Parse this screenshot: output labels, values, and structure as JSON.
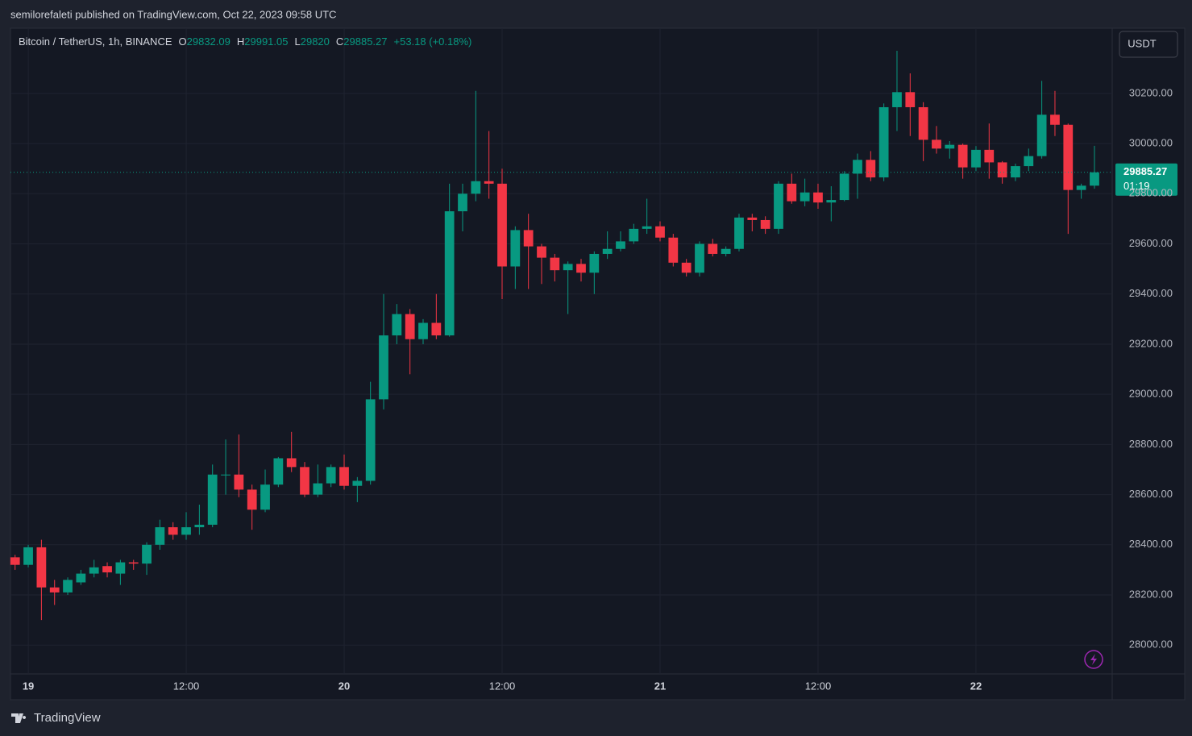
{
  "chart_data": {
    "type": "candlestick",
    "published": "semilorefaleti published on TradingView.com, Oct 22, 2023 09:58 UTC",
    "title": "Bitcoin / TetherUS, 1h, BINANCE",
    "ohlc_labels": [
      "O",
      "H",
      "L",
      "C"
    ],
    "change": "+53.18 (+0.18%)",
    "currency": "USDT",
    "countdown": "01:19",
    "brand": "TradingView",
    "up_color": "#089981",
    "down_color": "#f23645",
    "grid": true,
    "x": [
      "2023-10-18 23:00",
      "2023-10-19 00:00",
      "2023-10-19 01:00",
      "2023-10-19 02:00",
      "2023-10-19 03:00",
      "2023-10-19 04:00",
      "2023-10-19 05:00",
      "2023-10-19 06:00",
      "2023-10-19 07:00",
      "2023-10-19 08:00",
      "2023-10-19 09:00",
      "2023-10-19 10:00",
      "2023-10-19 11:00",
      "2023-10-19 12:00",
      "2023-10-19 13:00",
      "2023-10-19 14:00",
      "2023-10-19 15:00",
      "2023-10-19 16:00",
      "2023-10-19 17:00",
      "2023-10-19 18:00",
      "2023-10-19 19:00",
      "2023-10-19 20:00",
      "2023-10-19 21:00",
      "2023-10-19 22:00",
      "2023-10-19 23:00",
      "2023-10-20 00:00",
      "2023-10-20 01:00",
      "2023-10-20 02:00",
      "2023-10-20 03:00",
      "2023-10-20 04:00",
      "2023-10-20 05:00",
      "2023-10-20 06:00",
      "2023-10-20 07:00",
      "2023-10-20 08:00",
      "2023-10-20 09:00",
      "2023-10-20 10:00",
      "2023-10-20 11:00",
      "2023-10-20 12:00",
      "2023-10-20 13:00",
      "2023-10-20 14:00",
      "2023-10-20 15:00",
      "2023-10-20 16:00",
      "2023-10-20 17:00",
      "2023-10-20 18:00",
      "2023-10-20 19:00",
      "2023-10-20 20:00",
      "2023-10-20 21:00",
      "2023-10-20 22:00",
      "2023-10-20 23:00",
      "2023-10-21 00:00",
      "2023-10-21 01:00",
      "2023-10-21 02:00",
      "2023-10-21 03:00",
      "2023-10-21 04:00",
      "2023-10-21 05:00",
      "2023-10-21 06:00",
      "2023-10-21 07:00",
      "2023-10-21 08:00",
      "2023-10-21 09:00",
      "2023-10-21 10:00",
      "2023-10-21 11:00",
      "2023-10-21 12:00",
      "2023-10-21 13:00",
      "2023-10-21 14:00",
      "2023-10-21 15:00",
      "2023-10-21 16:00",
      "2023-10-21 17:00",
      "2023-10-21 18:00",
      "2023-10-21 19:00",
      "2023-10-21 20:00",
      "2023-10-21 21:00",
      "2023-10-21 22:00",
      "2023-10-21 23:00",
      "2023-10-22 00:00",
      "2023-10-22 01:00",
      "2023-10-22 02:00",
      "2023-10-22 03:00",
      "2023-10-22 04:00",
      "2023-10-22 05:00",
      "2023-10-22 06:00",
      "2023-10-22 07:00",
      "2023-10-22 08:00",
      "2023-10-22 09:00"
    ],
    "open": [
      28350,
      28320,
      28390,
      28230,
      28210,
      28250,
      28285,
      28315,
      28285,
      28330,
      28325,
      28400,
      28470,
      28440,
      28470,
      28480,
      28680,
      28680,
      28620,
      28540,
      28640,
      28745,
      28710,
      28600,
      28645,
      28710,
      28635,
      28655,
      28980,
      29235,
      29320,
      29220,
      29285,
      29235,
      29730,
      29800,
      29850,
      29840,
      29510,
      29655,
      29590,
      29545,
      29495,
      29520,
      29485,
      29560,
      29580,
      29610,
      29660,
      29670,
      29625,
      29525,
      29485,
      29600,
      29560,
      29580,
      29705,
      29695,
      29660,
      29840,
      29770,
      29805,
      29765,
      29775,
      29880,
      29935,
      29865,
      30145,
      30205,
      30145,
      30015,
      29980,
      29995,
      29905,
      29975,
      29925,
      29865,
      29910,
      29950,
      30115,
      30075,
      29815,
      29832.09
    ],
    "high": [
      28360,
      28400,
      28420,
      28260,
      28270,
      28300,
      28340,
      28330,
      28340,
      28340,
      28410,
      28500,
      28490,
      28530,
      28560,
      28720,
      28820,
      28840,
      28640,
      28700,
      28750,
      28850,
      28730,
      28720,
      28720,
      28760,
      28670,
      29050,
      29400,
      29360,
      29340,
      29300,
      29400,
      29840,
      29840,
      30210,
      30050,
      29900,
      29670,
      29720,
      29600,
      29560,
      29530,
      29540,
      29570,
      29650,
      29650,
      29680,
      29780,
      29690,
      29640,
      29540,
      29610,
      29620,
      29590,
      29720,
      29720,
      29710,
      29850,
      29880,
      29860,
      29840,
      29830,
      29890,
      29960,
      29970,
      30160,
      30370,
      30280,
      30165,
      30070,
      30010,
      30000,
      29990,
      30080,
      29930,
      29920,
      29980,
      30250,
      30210,
      30080,
      29840,
      29991.05
    ],
    "low": [
      28300,
      28310,
      28100,
      28160,
      28200,
      28240,
      28270,
      28270,
      28240,
      28300,
      28280,
      28380,
      28420,
      28420,
      28440,
      28470,
      28600,
      28590,
      28460,
      28530,
      28630,
      28690,
      28590,
      28590,
      28630,
      28620,
      28570,
      28640,
      28940,
      29200,
      29080,
      29200,
      29220,
      29230,
      29650,
      29770,
      29780,
      29380,
      29420,
      29420,
      29440,
      29450,
      29320,
      29450,
      29400,
      29540,
      29570,
      29600,
      29640,
      29610,
      29510,
      29470,
      29470,
      29550,
      29550,
      29570,
      29650,
      29640,
      29640,
      29760,
      29750,
      29740,
      29690,
      29770,
      29780,
      29850,
      29850,
      30050,
      30030,
      29930,
      29960,
      29940,
      29860,
      29890,
      29860,
      29840,
      29850,
      29890,
      29940,
      30030,
      29640,
      29780,
      29820.0
    ],
    "close": [
      28320,
      28390,
      28230,
      28210,
      28260,
      28285,
      28310,
      28290,
      28330,
      28325,
      28400,
      28470,
      28440,
      28470,
      28480,
      28680,
      28680,
      28620,
      28540,
      28640,
      28745,
      28710,
      28600,
      28645,
      28710,
      28635,
      28655,
      28980,
      29235,
      29320,
      29220,
      29285,
      29235,
      29730,
      29800,
      29850,
      29840,
      29510,
      29655,
      29590,
      29545,
      29495,
      29520,
      29485,
      29560,
      29580,
      29610,
      29660,
      29670,
      29625,
      29525,
      29485,
      29600,
      29560,
      29580,
      29705,
      29695,
      29660,
      29840,
      29770,
      29805,
      29765,
      29775,
      29880,
      29935,
      29865,
      30145,
      30205,
      30145,
      30015,
      29980,
      29995,
      29905,
      29975,
      29925,
      29865,
      29910,
      29950,
      30115,
      30075,
      29815,
      29832.09,
      29885.27
    ],
    "xlim": [
      "2023-10-18 22:39",
      "2023-10-22 10:21"
    ],
    "xticks": [
      {
        "value": "2023-10-19 00:00",
        "label": "19"
      },
      {
        "value": "2023-10-19 12:00",
        "label": "12:00"
      },
      {
        "value": "2023-10-20 00:00",
        "label": "20"
      },
      {
        "value": "2023-10-20 12:00",
        "label": "12:00"
      },
      {
        "value": "2023-10-21 00:00",
        "label": "21"
      },
      {
        "value": "2023-10-21 12:00",
        "label": "12:00"
      },
      {
        "value": "2023-10-22 00:00",
        "label": "22"
      }
    ],
    "ylim": [
      27885,
      30460
    ],
    "yticks": [
      {
        "value": 28000,
        "label": "28000.00"
      },
      {
        "value": 28200,
        "label": "28200.00"
      },
      {
        "value": 28400,
        "label": "28400.00"
      },
      {
        "value": 28600,
        "label": "28600.00"
      },
      {
        "value": 28800,
        "label": "28800.00"
      },
      {
        "value": 29000,
        "label": "29000.00"
      },
      {
        "value": 29200,
        "label": "29200.00"
      },
      {
        "value": 29400,
        "label": "29400.00"
      },
      {
        "value": 29600,
        "label": "29600.00"
      },
      {
        "value": 29800,
        "label": "29800.00"
      },
      {
        "value": 30000,
        "label": "30000.00"
      },
      {
        "value": 30200,
        "label": "30200.00"
      }
    ]
  }
}
